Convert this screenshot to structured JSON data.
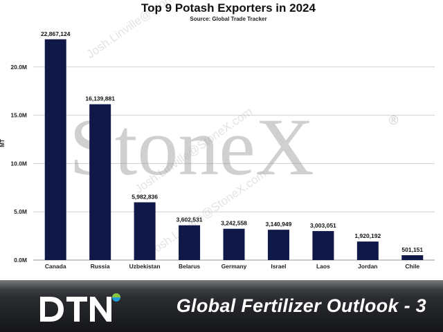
{
  "chart_data": {
    "type": "bar",
    "title": "Top 9 Potash Exporters in 2024",
    "subtitle": "Source: Global Trade Tracker",
    "ylabel": "MT",
    "xlabel": "",
    "ylim": [
      0,
      25000000
    ],
    "yticks": [
      0,
      5000000,
      10000000,
      15000000,
      20000000
    ],
    "ytick_labels": [
      "0.0M",
      "5.0M",
      "10.0M",
      "15.0M",
      "20.0M"
    ],
    "grid": "horizontal",
    "categories": [
      "Canada",
      "Russia",
      "Uzbekistan",
      "Belarus",
      "Germany",
      "Israel",
      "Laos",
      "Jordan",
      "Chile"
    ],
    "values": [
      22867124,
      16139881,
      5982836,
      3602531,
      3242558,
      3140949,
      3003051,
      1920192,
      501151
    ],
    "data_labels": [
      "22,867,124",
      "16,139,881",
      "5,982,836",
      "3,602,531",
      "3,242,558",
      "3,140,949",
      "3,003,051",
      "1,920,192",
      "501,151"
    ],
    "bar_color": "#101848"
  },
  "watermark": {
    "brand": "StoneX",
    "registered": "®",
    "email": "Josh.Linville@StoneX.com"
  },
  "footer": {
    "logo_text": "DTN",
    "logo_accent_colors": [
      "#1f9ad6",
      "#8cc63f"
    ],
    "text": "Global Fertilizer Outlook - 3"
  }
}
